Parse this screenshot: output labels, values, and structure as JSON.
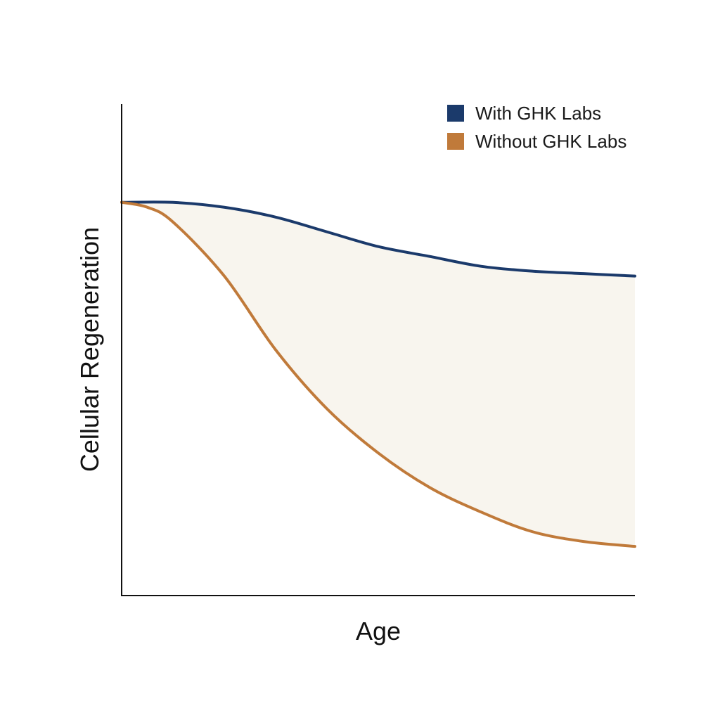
{
  "chart_data": {
    "type": "line",
    "title": "",
    "xlabel": "Age",
    "ylabel": "Cellular Regeneration",
    "xlim": [
      0,
      100
    ],
    "ylim": [
      0,
      100
    ],
    "grid": false,
    "legend": "top-right",
    "area_between_series": true,
    "series": [
      {
        "name": "With GHK Labs",
        "color": "#1b3a6b",
        "x": [
          0,
          10,
          20,
          30,
          40,
          50,
          60,
          70,
          80,
          90,
          100
        ],
        "y": [
          80,
          80,
          79,
          77,
          74,
          71,
          69,
          67,
          66,
          65.5,
          65
        ]
      },
      {
        "name": "Without GHK Labs",
        "color": "#c07a3a",
        "x": [
          0,
          5,
          10,
          20,
          30,
          40,
          50,
          60,
          70,
          80,
          90,
          100
        ],
        "y": [
          80,
          79,
          76,
          65,
          50,
          38,
          29,
          22,
          17,
          13,
          11,
          10
        ]
      }
    ],
    "fill_color": "#f8f5ee"
  }
}
